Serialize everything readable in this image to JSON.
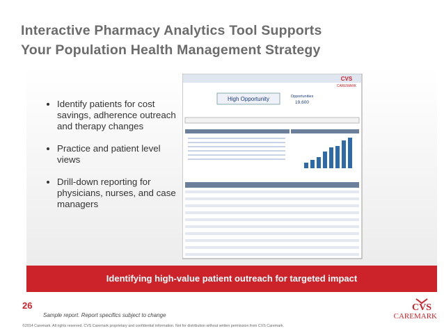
{
  "title": [
    "Interactive Pharmacy Analytics Tool Supports",
    "Your Population Health Management Strategy"
  ],
  "bullets": [
    "Identify patients for cost savings, adherence outreach and therapy changes",
    "Practice and patient level views",
    "Drill-down reporting for physicians, nurses, and case managers"
  ],
  "banner": "Identifying high-value patient outreach for targeted impact",
  "page_number": "26",
  "note": "Sample report. Report specifics subject to change",
  "footer": "©2014 Caremark. All rights reserved. CVS Caremark proprietary and confidential information. Not for distribution without written permission from CVS Caremark.",
  "logo": {
    "brand": "CVS",
    "name": "CAREMARK"
  },
  "screenshot": {
    "header": "High Opportunity",
    "label": "Opportunities",
    "count": "19,600",
    "logo_brand": "CVS",
    "logo_name": "CAREMARK"
  }
}
